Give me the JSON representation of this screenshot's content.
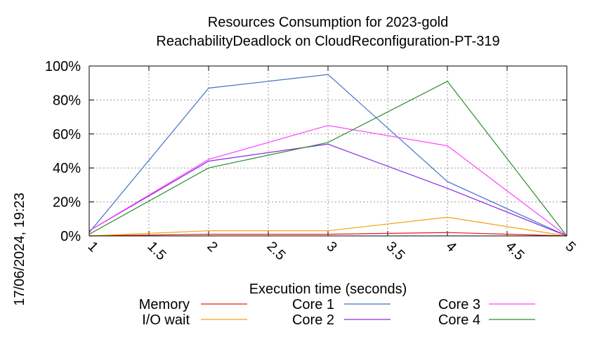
{
  "chart_data": {
    "type": "line",
    "title": "Resources Consumption for 2023-gold",
    "subtitle": "ReachabilityDeadlock on CloudReconfiguration-PT-319",
    "xlabel": "Execution time (seconds)",
    "ylabel": "",
    "xlim": [
      1,
      5
    ],
    "ylim": [
      0,
      100
    ],
    "x_ticks": [
      "1",
      "1.5",
      "2",
      "2.5",
      "3",
      "3.5",
      "4",
      "4.5",
      "5"
    ],
    "y_ticks": [
      "0%",
      "20%",
      "40%",
      "60%",
      "80%",
      "100%"
    ],
    "grid": true,
    "legend_position": "bottom",
    "timestamp": "17/06/2024, 19:23",
    "series": [
      {
        "name": "Memory",
        "color": "#e41a1c",
        "x": [
          1,
          2,
          3,
          4,
          5
        ],
        "values": [
          0,
          1,
          1,
          2,
          0
        ]
      },
      {
        "name": "I/O wait",
        "color": "#f0a30a",
        "x": [
          1,
          2,
          3,
          4,
          5
        ],
        "values": [
          0,
          3,
          3,
          11,
          0
        ]
      },
      {
        "name": "Core 1",
        "color": "#4472c4",
        "x": [
          1,
          2,
          3,
          4,
          5
        ],
        "values": [
          2,
          87,
          95,
          32,
          0
        ]
      },
      {
        "name": "Core 2",
        "color": "#8a2be2",
        "x": [
          1,
          2,
          3,
          4,
          5
        ],
        "values": [
          3,
          44,
          54,
          28,
          0
        ]
      },
      {
        "name": "Core 3",
        "color": "#ff40ff",
        "x": [
          1,
          2,
          3,
          4,
          5
        ],
        "values": [
          3,
          45,
          65,
          53,
          0
        ]
      },
      {
        "name": "Core 4",
        "color": "#2e8b2e",
        "x": [
          1,
          2,
          3,
          4,
          5
        ],
        "values": [
          1,
          40,
          55,
          91,
          0
        ]
      }
    ]
  }
}
